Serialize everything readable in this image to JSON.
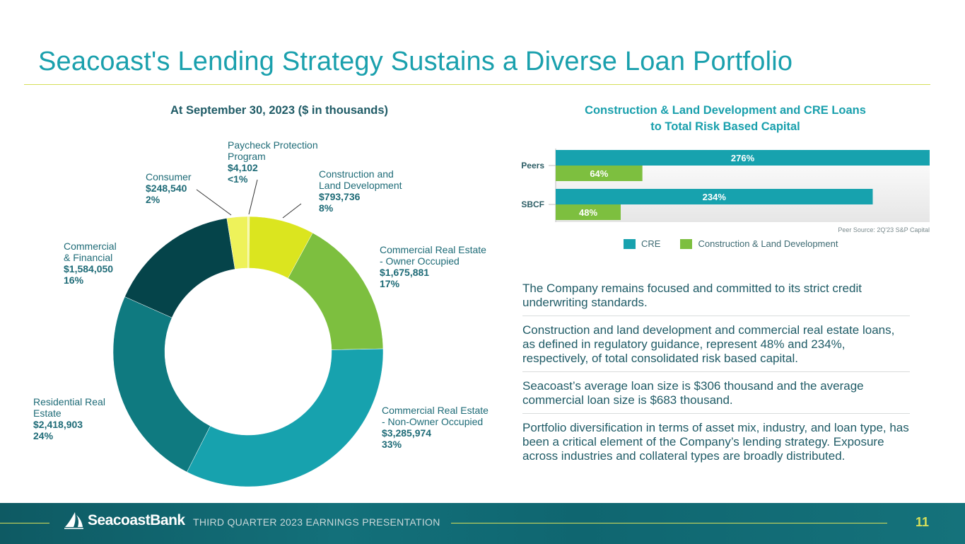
{
  "title": "Seacoast's Lending Strategy Sustains a Diverse Loan Portfolio",
  "donut_heading": "At September 30, 2023 ($ in thousands)",
  "bar_heading_line1": "Construction & Land Development and CRE Loans",
  "bar_heading_line2": "to Total Risk Based Capital",
  "peer_source": "Peer Source: 2Q'23 S&P Capital",
  "bullets": [
    "The Company remains focused and committed to its strict credit underwriting standards.",
    "Construction and land development and commercial real estate loans, as defined in regulatory guidance, represent 48% and 234%, respectively, of total consolidated risk based capital.",
    "Seacoast’s average loan size is $306 thousand and the average commercial loan size is $683 thousand.",
    "Portfolio diversification in terms of asset mix, industry, and loan type, has been a critical element of the Company’s lending strategy. Exposure across industries and collateral types are broadly distributed."
  ],
  "footer": {
    "logo_text": "SeacoastBank",
    "tagline": "THIRD QUARTER 2023 EARNINGS PRESENTATION",
    "page": "11"
  },
  "colors": {
    "title": "#1aa0ad",
    "rule": "#d6df5a",
    "cre": "#17a2ae",
    "cld": "#7dbf3f"
  },
  "chart_data": [
    {
      "type": "pie",
      "title": "At September 30, 2023 ($ in thousands)",
      "slices": [
        {
          "name_lines": [
            "Construction and",
            "Land Development"
          ],
          "value_text": "$793,736",
          "value": 793736,
          "pct_text": "8%",
          "color": "#dbe51f"
        },
        {
          "name_lines": [
            "Commercial Real Estate",
            "- Owner Occupied"
          ],
          "value_text": "$1,675,881",
          "value": 1675881,
          "pct_text": "17%",
          "color": "#7dbf3f"
        },
        {
          "name_lines": [
            "Commercial Real Estate",
            "- Non-Owner Occupied"
          ],
          "value_text": "$3,285,974",
          "value": 3285974,
          "pct_text": "33%",
          "color": "#17a2ae"
        },
        {
          "name_lines": [
            "Residential Real",
            "Estate"
          ],
          "value_text": "$2,418,903",
          "value": 2418903,
          "pct_text": "24%",
          "color": "#0f7a80"
        },
        {
          "name_lines": [
            "Commercial",
            "& Financial"
          ],
          "value_text": "$1,584,050",
          "value": 1584050,
          "pct_text": "16%",
          "color": "#05444a"
        },
        {
          "name_lines": [
            "Consumer"
          ],
          "value_text": "$248,540",
          "value": 248540,
          "pct_text": "2%",
          "color": "#eef25a"
        },
        {
          "name_lines": [
            "Paycheck Protection",
            "Program"
          ],
          "value_text": "$4,102",
          "value": 4102,
          "pct_text": "<1%",
          "color": "#f5f7a0"
        }
      ]
    },
    {
      "type": "bar",
      "orientation": "horizontal",
      "title": "Construction & Land Development and CRE Loans to Total Risk Based Capital",
      "categories": [
        "Peers",
        "SBCF"
      ],
      "series": [
        {
          "name": "CRE",
          "values": [
            276,
            234
          ],
          "labels": [
            "276%",
            "234%"
          ],
          "color": "#17a2ae"
        },
        {
          "name": "Construction & Land Development",
          "values": [
            64,
            48
          ],
          "labels": [
            "64%",
            "48%"
          ],
          "color": "#7dbf3f"
        }
      ],
      "xlim": [
        0,
        276
      ],
      "legend": "bottom"
    }
  ]
}
